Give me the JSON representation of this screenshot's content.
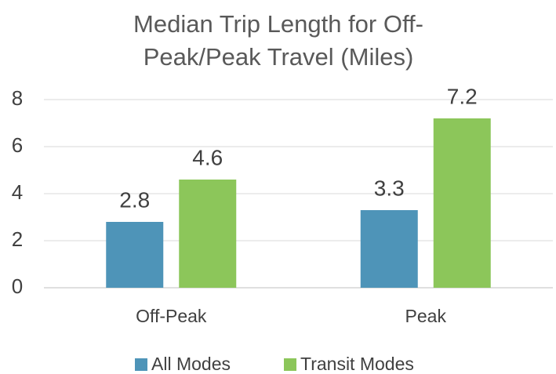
{
  "chart_data": {
    "type": "bar",
    "title": "Median Trip Length for Off-Peak/Peak Travel (Miles)",
    "categories": [
      "Off-Peak",
      "Peak"
    ],
    "series": [
      {
        "name": "All Modes",
        "color": "#4e94b8",
        "values": [
          2.8,
          3.3
        ]
      },
      {
        "name": "Transit Modes",
        "color": "#8cc65a",
        "values": [
          4.6,
          7.2
        ]
      }
    ],
    "ylim": [
      0,
      8
    ],
    "yticks": [
      0,
      2,
      4,
      6,
      8
    ],
    "grid": true,
    "legend": "bottom"
  }
}
